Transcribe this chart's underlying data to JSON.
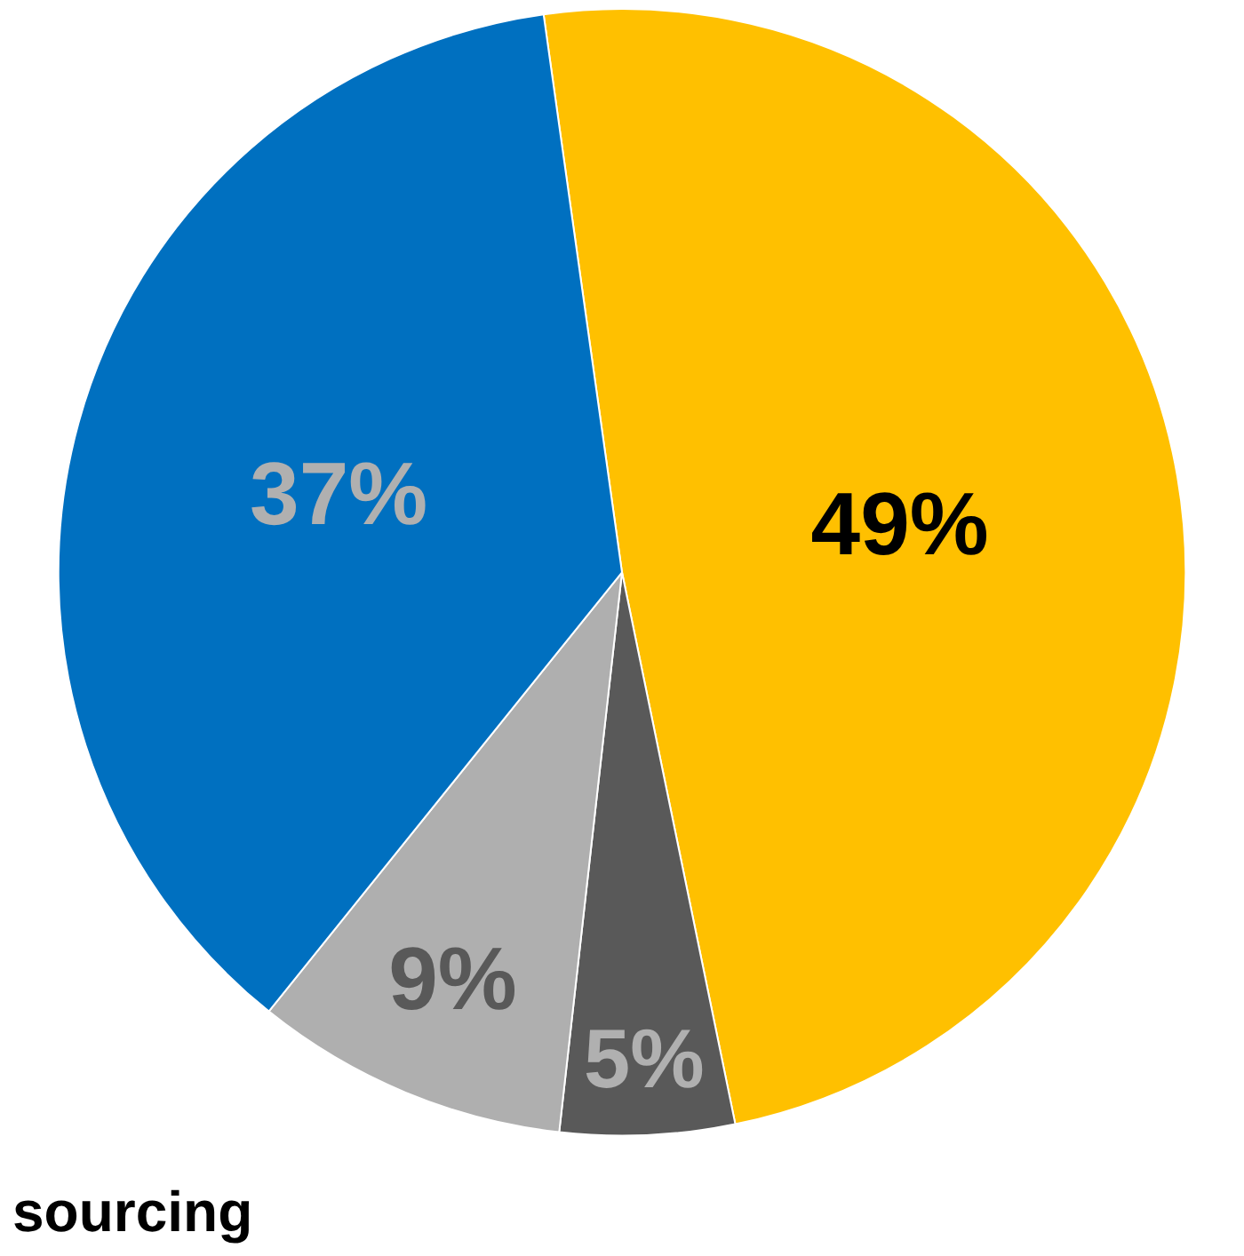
{
  "chart_data": {
    "type": "pie",
    "categories": [
      null,
      null,
      null,
      null
    ],
    "values": [
      49,
      5,
      9,
      37
    ],
    "colors": [
      "#ffc000",
      "#595959",
      "#afafaf",
      "#0070c0"
    ],
    "value_labels": [
      "49%",
      "5%",
      "9%",
      "37%"
    ],
    "annotations": [
      "sourcing"
    ],
    "legend": false
  }
}
